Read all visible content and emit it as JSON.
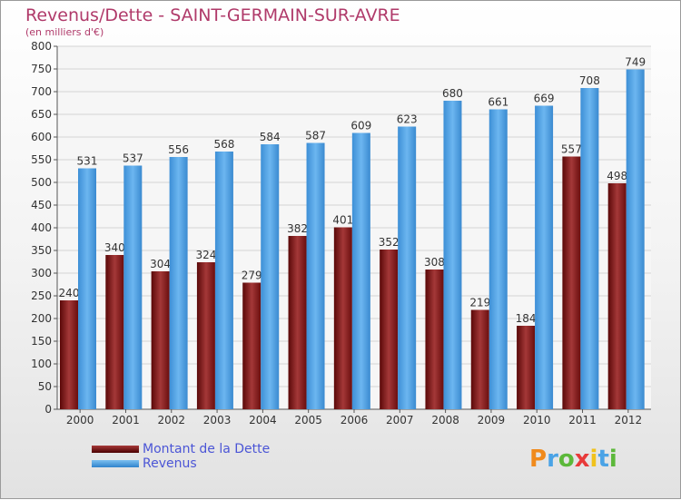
{
  "header": {
    "title": "Revenus/Dette - SAINT-GERMAIN-SUR-AVRE",
    "subtitle": "(en milliers d'€)"
  },
  "legend": {
    "items": [
      {
        "label": "Montant de la Dette",
        "color": "#7a1414"
      },
      {
        "label": "Revenus",
        "color": "#4aa3e6"
      }
    ]
  },
  "brand": {
    "text": "Proxiti",
    "letter_colors": [
      "#f08a1c",
      "#4aa3e6",
      "#5cb83a",
      "#e83a3a",
      "#f0c21c",
      "#4aa3e6",
      "#5cb83a"
    ]
  },
  "chart_data": {
    "type": "bar",
    "categories": [
      "2000",
      "2001",
      "2002",
      "2003",
      "2004",
      "2005",
      "2006",
      "2007",
      "2008",
      "2009",
      "2010",
      "2011",
      "2012"
    ],
    "series": [
      {
        "name": "Montant de la Dette",
        "values": [
          240,
          340,
          304,
          324,
          279,
          382,
          401,
          352,
          308,
          219,
          184,
          557,
          498
        ],
        "color": "#7a1414"
      },
      {
        "name": "Revenus",
        "values": [
          531,
          537,
          556,
          568,
          584,
          587,
          609,
          623,
          680,
          661,
          669,
          708,
          749
        ],
        "color": "#4aa3e6"
      }
    ],
    "ylim": [
      0,
      800
    ],
    "y_ticks": [
      0,
      50,
      100,
      150,
      200,
      250,
      300,
      350,
      400,
      450,
      500,
      550,
      600,
      650,
      700,
      750,
      800
    ],
    "grid": true,
    "legend_position": "bottom-left"
  }
}
